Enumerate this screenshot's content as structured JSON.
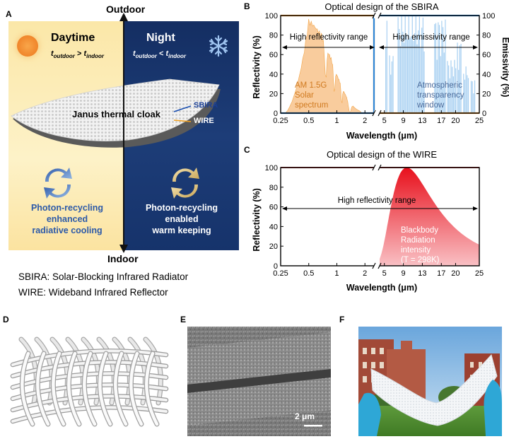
{
  "panel_labels": {
    "a": "A",
    "b": "B",
    "c": "C",
    "d": "D",
    "e": "E",
    "f": "F"
  },
  "panelA": {
    "outdoor": "Outdoor",
    "indoor": "Indoor",
    "daytime": "Daytime",
    "night": "Night",
    "day_ineq_left": "t",
    "day_ineq_left_sub": "outdoor",
    "day_ineq_op": " > ",
    "day_ineq_right": "t",
    "day_ineq_right_sub": "indoor",
    "night_ineq_left": "t",
    "night_ineq_left_sub": "outdoor",
    "night_ineq_op": " < ",
    "night_ineq_right": "t",
    "night_ineq_right_sub": "indoor",
    "sbira_label": "SBIRA",
    "wire_label": "WIRE",
    "cloak_label": "Janus thermal cloak",
    "day_caption": [
      "Photon-recycling",
      "enhanced",
      "radiative cooling"
    ],
    "night_caption": [
      "Photon-recycling",
      "enabled",
      "warm keeping"
    ],
    "day_color": "#2d5aa8",
    "night_color": "#ffffff"
  },
  "definitions": [
    "SBIRA: Solar-Blocking Infrared Radiator",
    "WIRE: Wideband Infrared Reflector"
  ],
  "chart_data": [
    {
      "type": "area",
      "title": "Optical design of the SBIRA",
      "xlabel": "Wavelength (μm)",
      "ylabel": "Reflectivity (%)",
      "y2label": "Emissivity (%)",
      "x_ticks": [
        "0.25",
        "0.5",
        "1",
        "2",
        "5",
        "9",
        "13",
        "17",
        "20",
        "25"
      ],
      "y_ticks": [
        0,
        20,
        40,
        60,
        80,
        100
      ],
      "ylim": [
        0,
        100
      ],
      "x_break": 2.5,
      "annotations": [
        "High reflectivity range",
        "High emissivity range",
        "AM 1.5G",
        "Solar",
        "spectrum",
        "Atmospheric",
        "transparency",
        "window"
      ],
      "series": [
        {
          "name": "Reflectivity",
          "color": "#f0962a",
          "points": [
            [
              0.25,
              100
            ],
            [
              2.5,
              100
            ],
            [
              2.5,
              0
            ],
            [
              25,
              0
            ]
          ]
        },
        {
          "name": "Emissivity",
          "color": "#2f86d6",
          "points": [
            [
              0.25,
              0
            ],
            [
              2.5,
              0
            ],
            [
              2.5,
              100
            ],
            [
              25,
              100
            ]
          ]
        }
      ]
    },
    {
      "type": "area",
      "title": "Optical design of the WIRE",
      "xlabel": "Wavelength (μm)",
      "ylabel": "Reflectivity (%)",
      "x_ticks": [
        "0.25",
        "0.5",
        "1",
        "2",
        "5",
        "9",
        "13",
        "17",
        "20",
        "25"
      ],
      "y_ticks": [
        0,
        20,
        40,
        60,
        80,
        100
      ],
      "ylim": [
        0,
        100
      ],
      "annotations": [
        "High reflectivity range",
        "Blackbody",
        "Radiation",
        "intensity",
        "(T = 298K)"
      ],
      "series": [
        {
          "name": "Reflectivity",
          "color": "#a00000",
          "points": [
            [
              0.25,
              100
            ],
            [
              25,
              100
            ]
          ]
        },
        {
          "name": "Blackbody",
          "color": "#e8242a",
          "points": [
            [
              4,
              0
            ],
            [
              5,
              20
            ],
            [
              7,
              75
            ],
            [
              9.7,
              100
            ],
            [
              13,
              80
            ],
            [
              17,
              55
            ],
            [
              20,
              40
            ],
            [
              25,
              24
            ]
          ]
        }
      ]
    }
  ],
  "panelE": {
    "scalebar": "2 μm"
  }
}
